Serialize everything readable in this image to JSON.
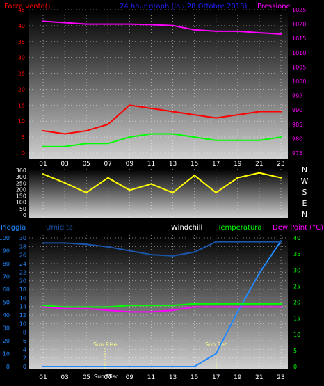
{
  "colors": {
    "wind": "#ff0000",
    "gust": "#00ff00",
    "pressure": "#ff00ff",
    "title": "#2222ff",
    "direction": "#ffff00",
    "rain": "#2288ff",
    "humidity": "#1a55aa",
    "windchill": "#ffffff",
    "temperature": "#00ff00",
    "dewpoint": "#ff00ff",
    "sun": "#ffff88",
    "axis": "#ffffff"
  },
  "charts": {
    "top": {
      "label_left": "Forza vento()",
      "title": "24 hour graph (lau  28 Ottobre 2013)",
      "label_right": "Pressione",
      "y_left_ticks": [
        "45",
        "40",
        "35",
        "30",
        "25",
        "20",
        "15",
        "10",
        "5",
        "0"
      ],
      "y_right_ticks": [
        "1025",
        "1020",
        "1015",
        "1010",
        "1005",
        "1000",
        "995",
        "990",
        "985",
        "980",
        "975"
      ]
    },
    "mid": {
      "y_left_ticks": [
        "360",
        "300",
        "250",
        "200",
        "150",
        "100",
        "50",
        "0"
      ],
      "compass": [
        "N",
        "W",
        "S",
        "E",
        "N"
      ]
    },
    "bottom": {
      "legend": {
        "rain": "Pioggia",
        "humidity": "Umidita",
        "windchill": "Windchill",
        "temperature": "Temperatura",
        "dewpoint": "Dew Point (°C)"
      },
      "y_rain_ticks": [
        "100",
        "90",
        "80",
        "70",
        "60",
        "50",
        "40",
        "30",
        "20",
        "10",
        "0"
      ],
      "y_temp_left_ticks": [
        "30",
        "28",
        "26",
        "24",
        "22",
        "20",
        "18",
        "16",
        "14",
        "12",
        "10",
        "8",
        "6",
        "4",
        "2",
        "0"
      ],
      "y_right_ticks": [
        "40",
        "35",
        "30",
        "25",
        "20",
        "15",
        "10",
        "5",
        "0"
      ],
      "sunrise_label": "Sun Rise",
      "sunset_label": "Sun Set",
      "sun_misc": "Sun Misc"
    },
    "x_ticks": [
      "01",
      "03",
      "05",
      "07",
      "09",
      "11",
      "13",
      "15",
      "17",
      "19",
      "21",
      "23"
    ]
  },
  "chart_data": [
    {
      "type": "line",
      "title": "24 hour graph (lau  28 Ottobre 2013)",
      "ylabel": "Forza vento()",
      "y2label": "Pressione",
      "ylim": [
        0,
        45
      ],
      "y2lim": [
        975,
        1025
      ],
      "x": [
        "01",
        "03",
        "05",
        "07",
        "09",
        "11",
        "13",
        "15",
        "17",
        "19",
        "21",
        "23"
      ],
      "series": [
        {
          "name": "Pressione",
          "axis": "right",
          "values": [
            1021,
            1020.5,
            1020,
            1020,
            1020,
            1019.8,
            1019.5,
            1018,
            1017.5,
            1017.5,
            1017,
            1016.5
          ]
        },
        {
          "name": "Forza vento",
          "axis": "left",
          "values": [
            7,
            6,
            7,
            9,
            15,
            14,
            13,
            12,
            11,
            12,
            13,
            13
          ]
        },
        {
          "axis": "left",
          "values": [
            2,
            2,
            3,
            3,
            5,
            6,
            6,
            5,
            4,
            4,
            4,
            5
          ]
        }
      ]
    },
    {
      "type": "line",
      "ylabel": "",
      "ylim": [
        0,
        360
      ],
      "x": [
        "01",
        "03",
        "05",
        "07",
        "09",
        "11",
        "13",
        "15",
        "17",
        "19",
        "21",
        "23"
      ],
      "series": [
        {
          "values": [
            330,
            260,
            180,
            300,
            200,
            250,
            180,
            320,
            180,
            300,
            340,
            300
          ]
        }
      ]
    },
    {
      "type": "line",
      "x": [
        "01",
        "03",
        "05",
        "07",
        "09",
        "11",
        "13",
        "15",
        "17",
        "19",
        "21",
        "23"
      ],
      "series": [
        {
          "name": "Pioggia",
          "axis": "right",
          "ylim": [
            0,
            40
          ],
          "values": [
            0,
            0,
            0,
            0,
            0,
            0,
            0,
            0,
            4,
            17,
            29,
            39
          ]
        },
        {
          "name": "Umidita",
          "axis": "left",
          "ylim": [
            0,
            100
          ],
          "values": [
            96,
            96,
            95,
            93,
            90,
            87,
            86,
            89,
            97,
            97,
            97,
            97
          ]
        },
        {
          "name": "Temperatura",
          "axis": "right",
          "ylim": [
            0,
            40
          ],
          "values": [
            19,
            18.5,
            18.5,
            18.5,
            19,
            19,
            19,
            19.5,
            19.5,
            19.5,
            19.5,
            19.5
          ]
        },
        {
          "name": "Dew Point (°C)",
          "axis": "right",
          "ylim": [
            0,
            40
          ],
          "values": [
            18.5,
            18,
            18,
            17.5,
            17,
            17,
            17.5,
            18.5,
            18.5,
            18.5,
            18.5,
            18.5
          ]
        }
      ]
    }
  ]
}
